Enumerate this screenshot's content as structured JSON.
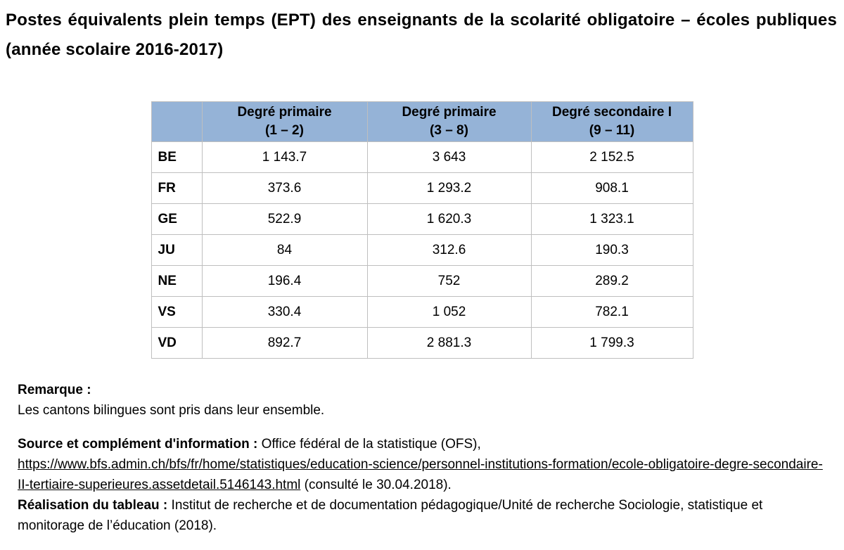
{
  "title": "Postes équivalents plein temps (EPT) des enseignants de la scolarité obligatoire – écoles publiques (année scolaire 2016-2017)",
  "table": {
    "corner_label": "",
    "headers": [
      {
        "line1": "Degré primaire",
        "line2": "(1 – 2)"
      },
      {
        "line1": "Degré primaire",
        "line2": "(3 – 8)"
      },
      {
        "line1": "Degré secondaire I",
        "line2": "(9 – 11)"
      }
    ],
    "rows": [
      {
        "canton": "BE",
        "values": [
          "1 143.7",
          "3 643",
          "2 152.5"
        ]
      },
      {
        "canton": "FR",
        "values": [
          "373.6",
          "1 293.2",
          "908.1"
        ]
      },
      {
        "canton": "GE",
        "values": [
          "522.9",
          "1 620.3",
          "1 323.1"
        ]
      },
      {
        "canton": "JU",
        "values": [
          "84",
          "312.6",
          "190.3"
        ]
      },
      {
        "canton": "NE",
        "values": [
          "196.4",
          "752",
          "289.2"
        ]
      },
      {
        "canton": "VS",
        "values": [
          "330.4",
          "1 052",
          "782.1"
        ]
      },
      {
        "canton": "VD",
        "values": [
          "892.7",
          "2 881.3",
          "1 799.3"
        ]
      }
    ]
  },
  "notes": {
    "remark_label": "Remarque :",
    "remark_text": "Les cantons bilingues sont pris dans leur ensemble.",
    "source_label": "Source et complément d'information :",
    "source_text": "Office fédéral de la statistique (OFS),",
    "source_url": "https://www.bfs.admin.ch/bfs/fr/home/statistiques/education-science/personnel-institutions-formation/ecole-obligatoire-degre-secondaire-II-tertiaire-superieures.assetdetail.5146143.html",
    "source_suffix": "(consulté le 30.04.2018).",
    "realisation_label": "Réalisation du tableau :",
    "realisation_text": "Institut de recherche et de documentation pédagogique/Unité de recherche Sociologie, statistique et monitorage de l’éducation (2018)."
  },
  "colors": {
    "header_bg": "#95B3D7",
    "table_border": "#BFBFBF",
    "text": "#000000"
  }
}
